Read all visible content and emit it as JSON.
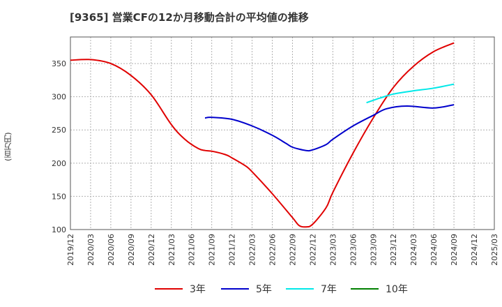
{
  "title": "[9365]  営業CFの12か月移動合計の平均値の推移",
  "chart_data": {
    "type": "line",
    "title": "[9365]  営業CFの12か月移動合計の平均値の推移",
    "xlabel": "",
    "ylabel": "(百万円)",
    "ylim": [
      100,
      390
    ],
    "yticks": [
      100,
      150,
      200,
      250,
      300,
      350
    ],
    "x_range": [
      "2019-12",
      "2025-03"
    ],
    "xticks": [
      "2019/12",
      "2020/03",
      "2020/06",
      "2020/09",
      "2020/12",
      "2021/03",
      "2021/06",
      "2021/09",
      "2021/12",
      "2022/03",
      "2022/06",
      "2022/09",
      "2022/12",
      "2023/03",
      "2023/06",
      "2023/09",
      "2023/12",
      "2024/03",
      "2024/06",
      "2024/09",
      "2024/12",
      "2025/03"
    ],
    "grid": true,
    "legend_position": "bottom",
    "series": [
      {
        "name": "3年",
        "color": "#e00000",
        "points": [
          [
            "2019-12",
            355
          ],
          [
            "2020-03",
            356
          ],
          [
            "2020-06",
            350
          ],
          [
            "2020-09",
            332
          ],
          [
            "2020-12",
            303
          ],
          [
            "2021-03",
            258
          ],
          [
            "2021-05",
            236
          ],
          [
            "2021-07",
            222
          ],
          [
            "2021-08",
            219
          ],
          [
            "2021-09",
            218
          ],
          [
            "2021-11",
            213
          ],
          [
            "2021-12",
            208
          ],
          [
            "2022-02",
            196
          ],
          [
            "2022-03",
            187
          ],
          [
            "2022-06",
            154
          ],
          [
            "2022-09",
            118
          ],
          [
            "2022-10",
            106
          ],
          [
            "2022-11",
            104
          ],
          [
            "2022-12",
            108
          ],
          [
            "2023-02",
            133
          ],
          [
            "2023-03",
            156
          ],
          [
            "2023-06",
            215
          ],
          [
            "2023-09",
            268
          ],
          [
            "2023-12",
            314
          ],
          [
            "2024-03",
            346
          ],
          [
            "2024-06",
            368
          ],
          [
            "2024-09",
            381
          ]
        ]
      },
      {
        "name": "5年",
        "color": "#0000cc",
        "points": [
          [
            "2021-08",
            268
          ],
          [
            "2021-09",
            269
          ],
          [
            "2021-12",
            266
          ],
          [
            "2022-03",
            256
          ],
          [
            "2022-06",
            242
          ],
          [
            "2022-08",
            230
          ],
          [
            "2022-09",
            224
          ],
          [
            "2022-11",
            219
          ],
          [
            "2022-12",
            220
          ],
          [
            "2023-02",
            228
          ],
          [
            "2023-03",
            236
          ],
          [
            "2023-06",
            256
          ],
          [
            "2023-09",
            272
          ],
          [
            "2023-11",
            282
          ],
          [
            "2024-02",
            286
          ],
          [
            "2024-06",
            283
          ],
          [
            "2024-09",
            288
          ]
        ]
      },
      {
        "name": "7年",
        "color": "#00e8e8",
        "points": [
          [
            "2023-08",
            291
          ],
          [
            "2023-10",
            298
          ],
          [
            "2023-12",
            304
          ],
          [
            "2024-03",
            309
          ],
          [
            "2024-06",
            313
          ],
          [
            "2024-09",
            319
          ]
        ]
      },
      {
        "name": "10年",
        "color": "#008000",
        "points": []
      }
    ]
  }
}
